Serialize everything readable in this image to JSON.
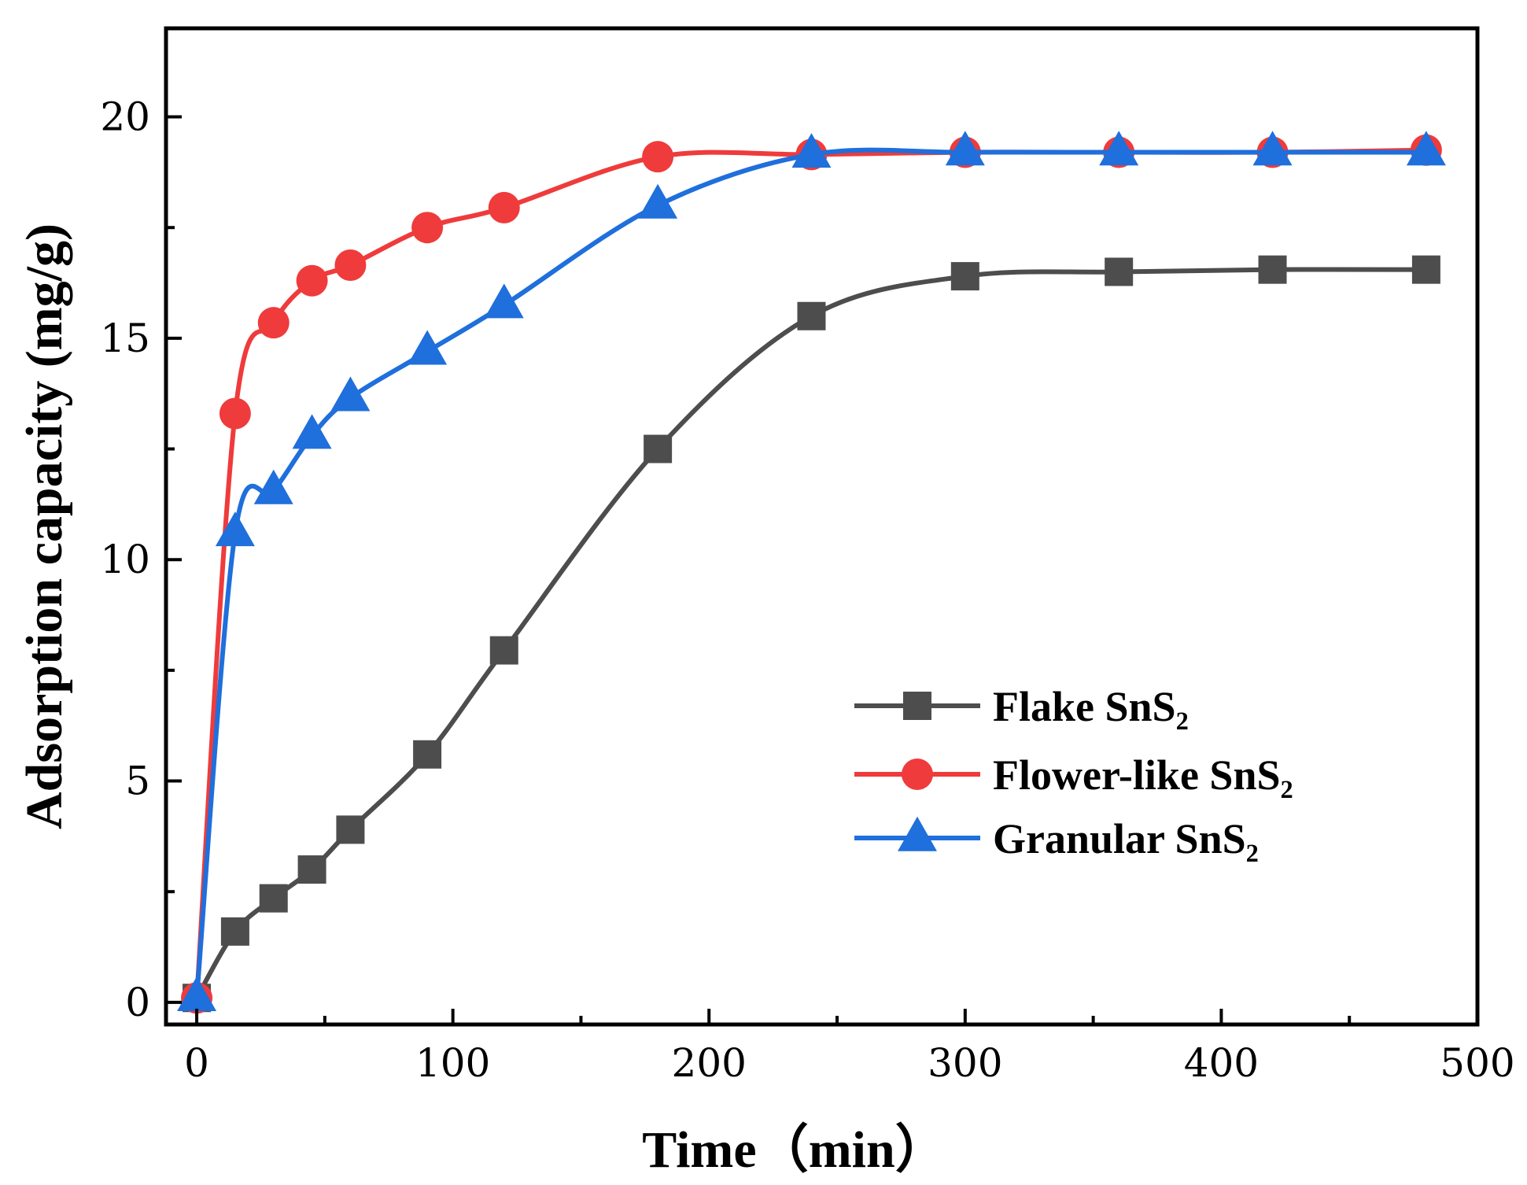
{
  "chart_data": {
    "type": "line",
    "xlabel": "Time（min）",
    "ylabel": "Adsorption capacity (mg/g)",
    "xlim": [
      -12,
      500
    ],
    "ylim": [
      -0.5,
      22
    ],
    "xticks": [
      0,
      100,
      200,
      300,
      400,
      500
    ],
    "yticks": [
      0,
      5,
      10,
      15,
      20
    ],
    "xtick_labels": [
      "0",
      "100",
      "200",
      "300",
      "400",
      "500"
    ],
    "ytick_labels": [
      "0",
      "5",
      "10",
      "15",
      "20"
    ],
    "grid": false,
    "legend_position": "lower-right",
    "series": [
      {
        "name": "Flake SnS₂",
        "color": "#4d4d4d",
        "marker": "square",
        "x": [
          0,
          15,
          30,
          45,
          60,
          90,
          120,
          180,
          240,
          300,
          360,
          420,
          480
        ],
        "y": [
          0.1,
          1.6,
          2.35,
          3.0,
          3.9,
          5.6,
          7.95,
          12.5,
          15.5,
          16.4,
          16.5,
          16.55,
          16.55
        ]
      },
      {
        "name": "Flower-like SnS₂",
        "color": "#ef3b3b",
        "marker": "circle",
        "x": [
          0,
          15,
          30,
          45,
          60,
          90,
          120,
          180,
          240,
          300,
          360,
          420,
          480
        ],
        "y": [
          0.1,
          13.3,
          15.35,
          16.3,
          16.65,
          17.5,
          17.95,
          19.1,
          19.15,
          19.2,
          19.2,
          19.2,
          19.25
        ]
      },
      {
        "name": "Granular SnS₂",
        "color": "#1f6fdc",
        "marker": "triangle",
        "x": [
          0,
          15,
          30,
          45,
          60,
          90,
          120,
          180,
          240,
          300,
          360,
          420,
          480
        ],
        "y": [
          0.1,
          10.6,
          11.55,
          12.8,
          13.65,
          14.7,
          15.75,
          18.0,
          19.15,
          19.2,
          19.2,
          19.2,
          19.2
        ]
      }
    ]
  }
}
